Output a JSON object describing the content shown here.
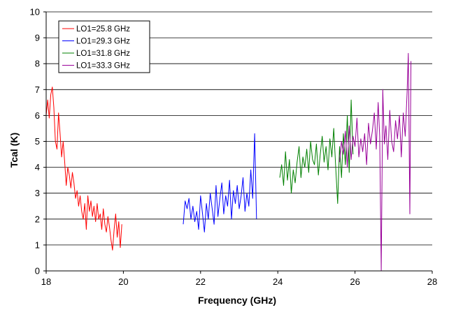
{
  "chart_data": {
    "type": "line",
    "xlabel": "Frequency (GHz)",
    "ylabel": "Tcal (K)",
    "xlim": [
      18,
      28
    ],
    "ylim": [
      0,
      10
    ],
    "x_ticks": [
      "18",
      "20",
      "22",
      "24",
      "26",
      "28"
    ],
    "y_ticks": [
      "0",
      "1",
      "2",
      "3",
      "4",
      "5",
      "6",
      "7",
      "8",
      "9",
      "10"
    ],
    "x_tick_values": [
      18,
      20,
      22,
      24,
      26,
      28
    ],
    "y_tick_values": [
      0,
      1,
      2,
      3,
      4,
      5,
      6,
      7,
      8,
      9,
      10
    ],
    "grid": "horizontal",
    "legend_position": "top-left",
    "series": [
      {
        "name": "LO1=25.8 GHz",
        "color": "#ff0000",
        "x": [
          18.0,
          18.04,
          18.08,
          18.12,
          18.16,
          18.2,
          18.24,
          18.28,
          18.32,
          18.36,
          18.4,
          18.44,
          18.48,
          18.52,
          18.56,
          18.6,
          18.64,
          18.68,
          18.72,
          18.76,
          18.8,
          18.84,
          18.88,
          18.92,
          18.96,
          19.0,
          19.04,
          19.08,
          19.12,
          19.16,
          19.2,
          19.24,
          19.28,
          19.32,
          19.36,
          19.4,
          19.44,
          19.48,
          19.52,
          19.56,
          19.6,
          19.64,
          19.68,
          19.72,
          19.76,
          19.8,
          19.84,
          19.88,
          19.92,
          19.96
        ],
        "values": [
          6.0,
          6.6,
          5.9,
          6.8,
          7.1,
          6.3,
          5.0,
          4.7,
          6.1,
          5.3,
          4.4,
          5.0,
          4.2,
          3.3,
          4.0,
          3.7,
          3.2,
          3.8,
          3.4,
          2.8,
          3.1,
          2.5,
          2.9,
          2.3,
          2.0,
          2.6,
          1.6,
          2.9,
          2.3,
          2.7,
          2.1,
          2.5,
          1.9,
          2.6,
          2.0,
          2.2,
          1.6,
          2.4,
          1.8,
          1.5,
          2.1,
          1.7,
          1.2,
          0.8,
          1.6,
          2.2,
          1.3,
          1.9,
          0.9,
          1.8
        ]
      },
      {
        "name": "LO1=29.3 GHz",
        "color": "#0000ff",
        "x": [
          21.55,
          21.6,
          21.65,
          21.7,
          21.75,
          21.8,
          21.85,
          21.9,
          21.95,
          22.0,
          22.05,
          22.1,
          22.15,
          22.2,
          22.25,
          22.3,
          22.35,
          22.4,
          22.45,
          22.5,
          22.55,
          22.6,
          22.65,
          22.7,
          22.75,
          22.8,
          22.85,
          22.9,
          22.95,
          23.0,
          23.05,
          23.1,
          23.15,
          23.2,
          23.25,
          23.3,
          23.35,
          23.4,
          23.45
        ],
        "values": [
          1.8,
          2.7,
          2.4,
          2.8,
          2.0,
          2.5,
          1.9,
          2.3,
          1.6,
          2.9,
          2.2,
          1.5,
          2.6,
          2.0,
          3.0,
          2.4,
          1.8,
          3.3,
          2.1,
          2.8,
          3.4,
          2.2,
          2.9,
          2.5,
          3.5,
          2.0,
          3.1,
          2.6,
          3.3,
          2.4,
          2.9,
          3.6,
          2.3,
          3.0,
          2.5,
          3.9,
          2.8,
          5.3,
          2.0
        ]
      },
      {
        "name": "LO1=31.8 GHz",
        "color": "#008000",
        "x": [
          24.05,
          24.1,
          24.15,
          24.2,
          24.25,
          24.3,
          24.35,
          24.4,
          24.45,
          24.5,
          24.55,
          24.6,
          24.65,
          24.7,
          24.75,
          24.8,
          24.85,
          24.9,
          24.95,
          25.0,
          25.05,
          25.1,
          25.15,
          25.2,
          25.25,
          25.3,
          25.35,
          25.4,
          25.45,
          25.5,
          25.55,
          25.6,
          25.65,
          25.7,
          25.75,
          25.8,
          25.85,
          25.9,
          25.95
        ],
        "values": [
          3.6,
          4.1,
          3.3,
          4.6,
          3.5,
          4.3,
          3.0,
          3.9,
          3.4,
          4.2,
          4.8,
          3.6,
          4.4,
          4.0,
          4.7,
          3.8,
          5.0,
          4.3,
          4.1,
          4.9,
          3.7,
          4.5,
          5.2,
          4.2,
          4.8,
          3.9,
          5.1,
          4.4,
          5.5,
          4.0,
          2.6,
          4.8,
          3.6,
          5.3,
          4.1,
          6.0,
          3.8,
          6.6,
          4.5
        ]
      },
      {
        "name": "LO1=33.3 GHz",
        "color": "#990099",
        "x": [
          25.6,
          25.65,
          25.7,
          25.75,
          25.8,
          25.85,
          25.9,
          25.95,
          26.0,
          26.05,
          26.1,
          26.15,
          26.2,
          26.25,
          26.3,
          26.35,
          26.4,
          26.45,
          26.5,
          26.55,
          26.6,
          26.64,
          26.68,
          26.72,
          26.76,
          26.8,
          26.85,
          26.9,
          26.95,
          27.0,
          27.05,
          27.1,
          27.15,
          27.2,
          27.25,
          27.3,
          27.35,
          27.38,
          27.42,
          27.45
        ],
        "values": [
          4.2,
          5.0,
          4.5,
          5.4,
          4.0,
          5.6,
          4.3,
          5.2,
          4.8,
          5.9,
          4.4,
          5.1,
          4.6,
          5.3,
          4.1,
          5.7,
          4.9,
          5.4,
          6.1,
          4.7,
          6.5,
          5.2,
          0.0,
          7.0,
          4.9,
          5.6,
          4.3,
          6.2,
          5.0,
          4.6,
          5.8,
          5.1,
          6.0,
          4.4,
          6.1,
          5.2,
          6.9,
          8.4,
          2.2,
          8.1
        ]
      }
    ]
  }
}
